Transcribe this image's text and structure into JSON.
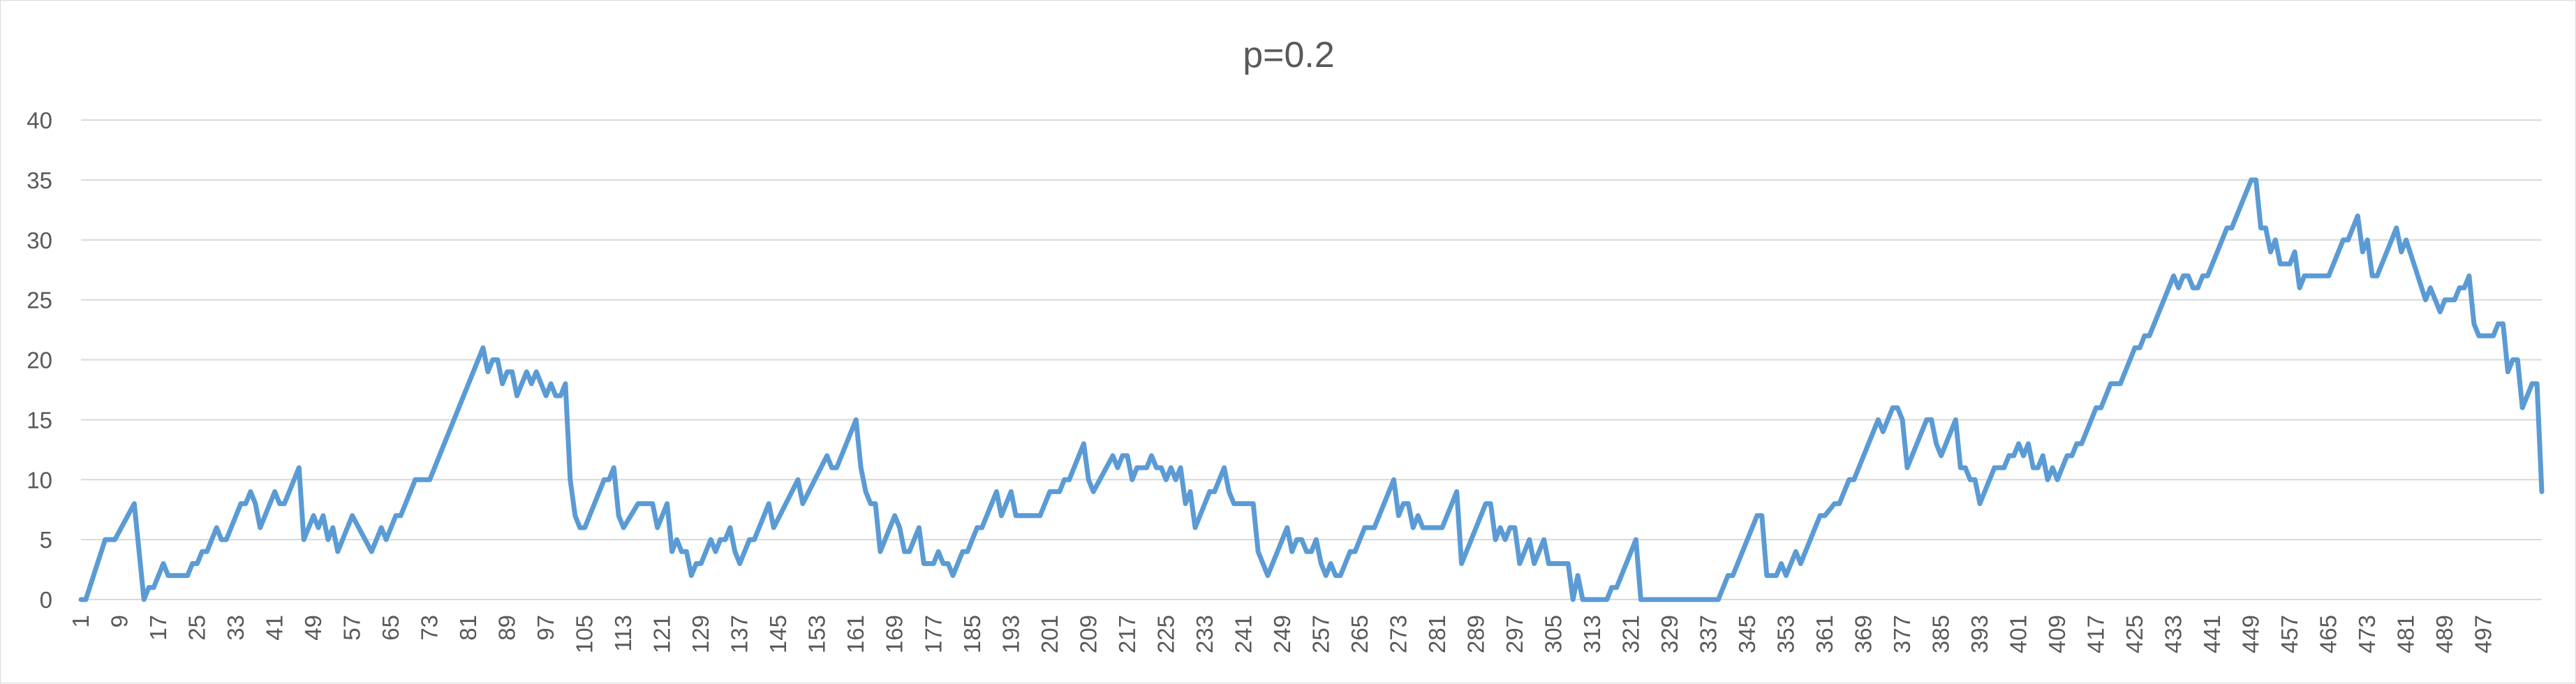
{
  "chart_data": {
    "type": "line",
    "title": "p=0.2",
    "xlabel": "",
    "ylabel": "",
    "ylim": [
      0,
      40
    ],
    "yticks": [
      0,
      5,
      10,
      15,
      20,
      25,
      30,
      35,
      40
    ],
    "x_tick_labels": [
      1,
      9,
      17,
      25,
      33,
      41,
      49,
      57,
      65,
      73,
      81,
      89,
      97,
      105,
      113,
      121,
      129,
      137,
      145,
      153,
      161,
      169,
      177,
      185,
      193,
      201,
      209,
      217,
      225,
      233,
      241,
      249,
      257,
      265,
      273,
      281,
      289,
      297,
      305,
      313,
      321,
      329,
      337,
      345,
      353,
      361,
      369,
      377,
      385,
      393,
      401,
      409,
      417,
      425,
      433,
      441,
      449,
      457,
      465,
      473,
      481,
      489,
      497
    ],
    "grid": true,
    "legend": "none",
    "line_color": "#5b9bd5",
    "series": [
      {
        "points": [
          [
            1,
            0
          ],
          [
            2,
            0
          ],
          [
            6,
            5
          ],
          [
            8,
            5
          ],
          [
            12,
            8
          ],
          [
            14,
            0
          ],
          [
            15,
            1
          ],
          [
            16,
            1
          ],
          [
            18,
            3
          ],
          [
            19,
            2
          ],
          [
            23,
            2
          ],
          [
            24,
            3
          ],
          [
            25,
            3
          ],
          [
            26,
            4
          ],
          [
            27,
            4
          ],
          [
            29,
            6
          ],
          [
            30,
            5
          ],
          [
            31,
            5
          ],
          [
            34,
            8
          ],
          [
            35,
            8
          ],
          [
            36,
            9
          ],
          [
            37,
            8
          ],
          [
            38,
            6
          ],
          [
            41,
            9
          ],
          [
            42,
            8
          ],
          [
            43,
            8
          ],
          [
            46,
            11
          ],
          [
            47,
            5
          ],
          [
            49,
            7
          ],
          [
            50,
            6
          ],
          [
            51,
            7
          ],
          [
            52,
            5
          ],
          [
            53,
            6
          ],
          [
            54,
            4
          ],
          [
            57,
            7
          ],
          [
            61,
            4
          ],
          [
            63,
            6
          ],
          [
            64,
            5
          ],
          [
            66,
            7
          ],
          [
            67,
            7
          ],
          [
            70,
            10
          ],
          [
            73,
            10
          ],
          [
            84,
            21
          ],
          [
            85,
            19
          ],
          [
            86,
            20
          ],
          [
            87,
            20
          ],
          [
            88,
            18
          ],
          [
            89,
            19
          ],
          [
            90,
            19
          ],
          [
            91,
            17
          ],
          [
            93,
            19
          ],
          [
            94,
            18
          ],
          [
            95,
            19
          ],
          [
            97,
            17
          ],
          [
            98,
            18
          ],
          [
            99,
            17
          ],
          [
            100,
            17
          ],
          [
            101,
            18
          ],
          [
            102,
            10
          ],
          [
            103,
            7
          ],
          [
            104,
            6
          ],
          [
            105,
            6
          ],
          [
            109,
            10
          ],
          [
            110,
            10
          ],
          [
            111,
            11
          ],
          [
            112,
            7
          ],
          [
            113,
            6
          ],
          [
            116,
            8
          ],
          [
            119,
            8
          ],
          [
            120,
            6
          ],
          [
            122,
            8
          ],
          [
            123,
            4
          ],
          [
            124,
            5
          ],
          [
            125,
            4
          ],
          [
            126,
            4
          ],
          [
            127,
            2
          ],
          [
            128,
            3
          ],
          [
            129,
            3
          ],
          [
            131,
            5
          ],
          [
            132,
            4
          ],
          [
            133,
            5
          ],
          [
            134,
            5
          ],
          [
            135,
            6
          ],
          [
            136,
            4
          ],
          [
            137,
            3
          ],
          [
            139,
            5
          ],
          [
            140,
            5
          ],
          [
            142,
            7
          ],
          [
            143,
            8
          ],
          [
            144,
            6
          ],
          [
            149,
            10
          ],
          [
            150,
            8
          ],
          [
            155,
            12
          ],
          [
            156,
            11
          ],
          [
            157,
            11
          ],
          [
            161,
            15
          ],
          [
            162,
            11
          ],
          [
            163,
            9
          ],
          [
            164,
            8
          ],
          [
            165,
            8
          ],
          [
            166,
            4
          ],
          [
            169,
            7
          ],
          [
            170,
            6
          ],
          [
            171,
            4
          ],
          [
            172,
            4
          ],
          [
            174,
            6
          ],
          [
            175,
            3
          ],
          [
            177,
            3
          ],
          [
            178,
            4
          ],
          [
            179,
            3
          ],
          [
            180,
            3
          ],
          [
            181,
            2
          ],
          [
            183,
            4
          ],
          [
            184,
            4
          ],
          [
            186,
            6
          ],
          [
            187,
            6
          ],
          [
            190,
            9
          ],
          [
            191,
            7
          ],
          [
            193,
            9
          ],
          [
            194,
            7
          ],
          [
            199,
            7
          ],
          [
            201,
            9
          ],
          [
            203,
            9
          ],
          [
            204,
            10
          ],
          [
            205,
            10
          ],
          [
            208,
            13
          ],
          [
            209,
            10
          ],
          [
            210,
            9
          ],
          [
            214,
            12
          ],
          [
            215,
            11
          ],
          [
            216,
            12
          ],
          [
            217,
            12
          ],
          [
            218,
            10
          ],
          [
            219,
            11
          ],
          [
            220,
            11
          ],
          [
            221,
            11
          ],
          [
            222,
            12
          ],
          [
            223,
            11
          ],
          [
            224,
            11
          ],
          [
            225,
            10
          ],
          [
            226,
            11
          ],
          [
            227,
            10
          ],
          [
            228,
            11
          ],
          [
            229,
            8
          ],
          [
            230,
            9
          ],
          [
            231,
            6
          ],
          [
            234,
            9
          ],
          [
            235,
            9
          ],
          [
            237,
            11
          ],
          [
            238,
            9
          ],
          [
            239,
            8
          ],
          [
            243,
            8
          ],
          [
            244,
            4
          ],
          [
            246,
            2
          ],
          [
            250,
            6
          ],
          [
            251,
            4
          ],
          [
            252,
            5
          ],
          [
            253,
            5
          ],
          [
            254,
            4
          ],
          [
            255,
            4
          ],
          [
            256,
            5
          ],
          [
            257,
            3
          ],
          [
            258,
            2
          ],
          [
            259,
            3
          ],
          [
            260,
            2
          ],
          [
            261,
            2
          ],
          [
            263,
            4
          ],
          [
            264,
            4
          ],
          [
            266,
            6
          ],
          [
            268,
            6
          ],
          [
            272,
            10
          ],
          [
            273,
            7
          ],
          [
            274,
            8
          ],
          [
            275,
            8
          ],
          [
            276,
            6
          ],
          [
            277,
            7
          ],
          [
            278,
            6
          ],
          [
            282,
            6
          ],
          [
            285,
            9
          ],
          [
            286,
            3
          ],
          [
            291,
            8
          ],
          [
            292,
            8
          ],
          [
            293,
            5
          ],
          [
            294,
            6
          ],
          [
            295,
            5
          ],
          [
            296,
            6
          ],
          [
            297,
            6
          ],
          [
            298,
            3
          ],
          [
            300,
            5
          ],
          [
            301,
            3
          ],
          [
            303,
            5
          ],
          [
            304,
            3
          ],
          [
            308,
            3
          ],
          [
            309,
            0
          ],
          [
            310,
            2
          ],
          [
            311,
            0
          ],
          [
            316,
            0
          ],
          [
            317,
            1
          ],
          [
            318,
            1
          ],
          [
            322,
            5
          ],
          [
            323,
            0
          ],
          [
            339,
            0
          ],
          [
            341,
            2
          ],
          [
            342,
            2
          ],
          [
            347,
            7
          ],
          [
            348,
            7
          ],
          [
            349,
            2
          ],
          [
            351,
            2
          ],
          [
            352,
            3
          ],
          [
            353,
            2
          ],
          [
            355,
            4
          ],
          [
            356,
            3
          ],
          [
            360,
            7
          ],
          [
            361,
            7
          ],
          [
            363,
            8
          ],
          [
            364,
            8
          ],
          [
            366,
            10
          ],
          [
            367,
            10
          ],
          [
            372,
            15
          ],
          [
            373,
            14
          ],
          [
            375,
            16
          ],
          [
            376,
            16
          ],
          [
            377,
            15
          ],
          [
            378,
            11
          ],
          [
            382,
            15
          ],
          [
            383,
            15
          ],
          [
            384,
            13
          ],
          [
            385,
            12
          ],
          [
            388,
            15
          ],
          [
            389,
            11
          ],
          [
            390,
            11
          ],
          [
            391,
            10
          ],
          [
            392,
            10
          ],
          [
            393,
            8
          ],
          [
            396,
            11
          ],
          [
            397,
            11
          ],
          [
            398,
            11
          ],
          [
            399,
            12
          ],
          [
            400,
            12
          ],
          [
            401,
            13
          ],
          [
            402,
            12
          ],
          [
            403,
            13
          ],
          [
            404,
            11
          ],
          [
            405,
            11
          ],
          [
            406,
            12
          ],
          [
            407,
            10
          ],
          [
            408,
            11
          ],
          [
            409,
            10
          ],
          [
            411,
            12
          ],
          [
            412,
            12
          ],
          [
            413,
            13
          ],
          [
            414,
            13
          ],
          [
            417,
            16
          ],
          [
            418,
            16
          ],
          [
            420,
            18
          ],
          [
            421,
            18
          ],
          [
            422,
            18
          ],
          [
            425,
            21
          ],
          [
            426,
            21
          ],
          [
            427,
            22
          ],
          [
            428,
            22
          ],
          [
            433,
            27
          ],
          [
            434,
            26
          ],
          [
            435,
            27
          ],
          [
            436,
            27
          ],
          [
            437,
            26
          ],
          [
            438,
            26
          ],
          [
            439,
            27
          ],
          [
            440,
            27
          ],
          [
            444,
            31
          ],
          [
            445,
            31
          ],
          [
            449,
            35
          ],
          [
            450,
            35
          ],
          [
            451,
            31
          ],
          [
            452,
            31
          ],
          [
            453,
            29
          ],
          [
            454,
            30
          ],
          [
            455,
            28
          ],
          [
            456,
            28
          ],
          [
            457,
            28
          ],
          [
            458,
            29
          ],
          [
            459,
            26
          ],
          [
            460,
            27
          ],
          [
            465,
            27
          ],
          [
            468,
            30
          ],
          [
            469,
            30
          ],
          [
            471,
            32
          ],
          [
            472,
            29
          ],
          [
            473,
            30
          ],
          [
            474,
            27
          ],
          [
            475,
            27
          ],
          [
            479,
            31
          ],
          [
            480,
            29
          ],
          [
            481,
            30
          ],
          [
            485,
            25
          ],
          [
            486,
            26
          ],
          [
            488,
            24
          ],
          [
            489,
            25
          ],
          [
            491,
            25
          ],
          [
            492,
            26
          ],
          [
            493,
            26
          ],
          [
            494,
            27
          ],
          [
            495,
            23
          ],
          [
            496,
            22
          ],
          [
            499,
            22
          ],
          [
            500,
            23
          ],
          [
            501,
            23
          ],
          [
            502,
            19
          ],
          [
            503,
            20
          ],
          [
            504,
            20
          ],
          [
            505,
            16
          ],
          [
            507,
            18
          ],
          [
            508,
            18
          ],
          [
            509,
            9
          ]
        ]
      }
    ]
  }
}
